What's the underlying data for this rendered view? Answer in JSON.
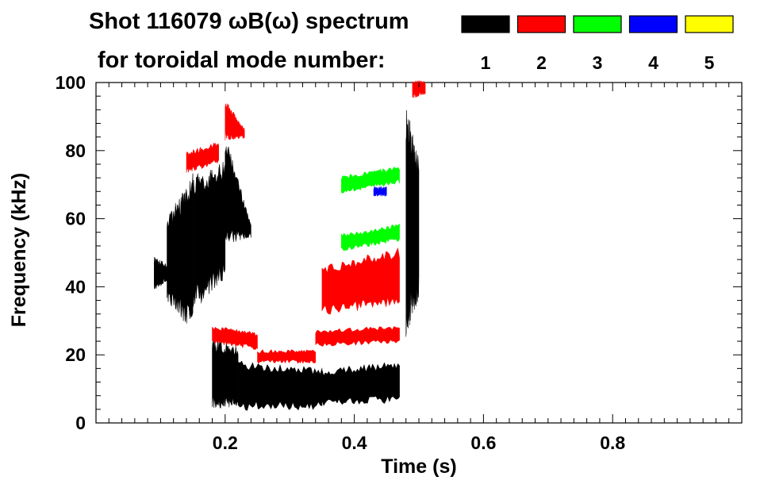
{
  "chart_data": {
    "type": "spectrogram",
    "title_line1": "Shot 116079 ωB(ω) spectrum",
    "title_line2": "for toroidal mode number:",
    "xlabel": "Time (s)",
    "ylabel": "Frequency (kHz)",
    "xlim": [
      0.0,
      1.0
    ],
    "ylim": [
      0,
      100
    ],
    "x_ticks": [
      {
        "value": 0.2,
        "label": "0.2"
      },
      {
        "value": 0.4,
        "label": "0.4"
      },
      {
        "value": 0.6,
        "label": "0.6"
      },
      {
        "value": 0.8,
        "label": "0.8"
      }
    ],
    "y_ticks": [
      {
        "value": 0,
        "label": "0"
      },
      {
        "value": 20,
        "label": "20"
      },
      {
        "value": 40,
        "label": "40"
      },
      {
        "value": 60,
        "label": "60"
      },
      {
        "value": 80,
        "label": "80"
      },
      {
        "value": 100,
        "label": "100"
      }
    ],
    "legend": [
      {
        "mode": "1",
        "color": "#000000"
      },
      {
        "mode": "2",
        "color": "#ff0000"
      },
      {
        "mode": "3",
        "color": "#00ff00"
      },
      {
        "mode": "4",
        "color": "#0000ff"
      },
      {
        "mode": "5",
        "color": "#ffff00"
      }
    ],
    "legend_placement": "top-right",
    "series": [
      {
        "mode": "1",
        "color": "#000000",
        "bands": [
          {
            "t0": 0.09,
            "t1": 0.11,
            "f_lo": [
              40,
              42
            ],
            "f_hi": [
              48,
              46
            ]
          },
          {
            "t0": 0.11,
            "t1": 0.15,
            "f_lo": [
              38,
              30
            ],
            "f_hi": [
              58,
              70
            ]
          },
          {
            "t0": 0.15,
            "t1": 0.2,
            "f_lo": [
              36,
              45
            ],
            "f_hi": [
              70,
              74
            ]
          },
          {
            "t0": 0.2,
            "t1": 0.24,
            "f_lo": [
              55,
              55
            ],
            "f_hi": [
              82,
              58
            ]
          },
          {
            "t0": 0.18,
            "t1": 0.22,
            "f_lo": [
              6,
              6
            ],
            "f_hi": [
              23,
              21
            ]
          },
          {
            "t0": 0.22,
            "t1": 0.35,
            "f_lo": [
              5,
              5
            ],
            "f_hi": [
              17,
              15
            ]
          },
          {
            "t0": 0.35,
            "t1": 0.47,
            "f_lo": [
              6,
              7
            ],
            "f_hi": [
              15,
              17
            ]
          },
          {
            "t0": 0.48,
            "t1": 0.5,
            "f_lo": [
              30,
              40
            ],
            "f_hi": [
              88,
              75
            ]
          }
        ]
      },
      {
        "mode": "2",
        "color": "#ff0000",
        "bands": [
          {
            "t0": 0.14,
            "t1": 0.19,
            "f_lo": [
              74,
              77
            ],
            "f_hi": [
              79,
              82
            ]
          },
          {
            "t0": 0.2,
            "t1": 0.23,
            "f_lo": [
              84,
              84
            ],
            "f_hi": [
              94,
              86
            ]
          },
          {
            "t0": 0.18,
            "t1": 0.25,
            "f_lo": [
              24,
              22
            ],
            "f_hi": [
              28,
              26
            ]
          },
          {
            "t0": 0.25,
            "t1": 0.34,
            "f_lo": [
              18,
              18
            ],
            "f_hi": [
              21,
              21
            ]
          },
          {
            "t0": 0.34,
            "t1": 0.47,
            "f_lo": [
              23,
              24
            ],
            "f_hi": [
              27,
              28
            ]
          },
          {
            "t0": 0.35,
            "t1": 0.47,
            "f_lo": [
              33,
              36
            ],
            "f_hi": [
              45,
              50
            ]
          },
          {
            "t0": 0.49,
            "t1": 0.51,
            "f_lo": [
              96,
              97
            ],
            "f_hi": [
              100,
              100
            ]
          }
        ]
      },
      {
        "mode": "3",
        "color": "#00ff00",
        "bands": [
          {
            "t0": 0.38,
            "t1": 0.47,
            "f_lo": [
              51,
              54
            ],
            "f_hi": [
              55,
              58
            ]
          },
          {
            "t0": 0.38,
            "t1": 0.47,
            "f_lo": [
              68,
              71
            ],
            "f_hi": [
              72,
              75
            ]
          }
        ]
      },
      {
        "mode": "4",
        "color": "#0000ff",
        "bands": [
          {
            "t0": 0.43,
            "t1": 0.45,
            "f_lo": [
              67,
              67
            ],
            "f_hi": [
              69,
              69
            ]
          }
        ]
      }
    ]
  }
}
